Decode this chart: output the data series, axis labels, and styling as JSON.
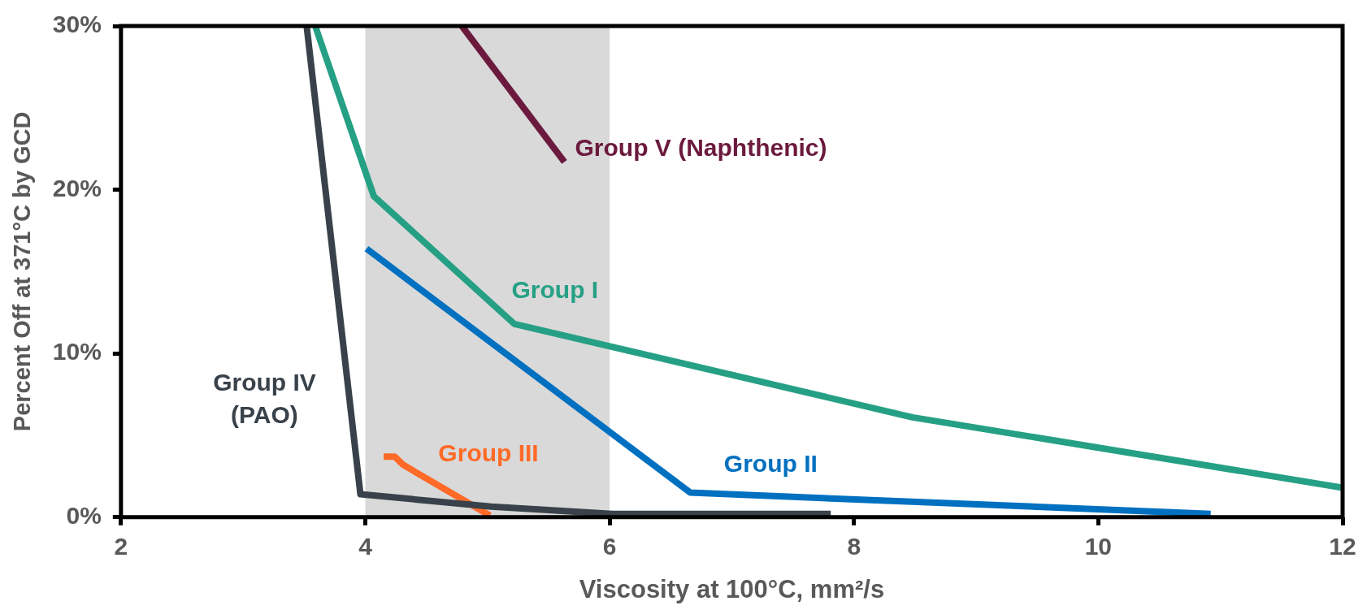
{
  "chart_data": {
    "type": "line",
    "xlabel": "Viscosity at 100°C, mm²/s",
    "ylabel": "Percent Off at 371°C by GCD",
    "xlim": [
      2,
      12
    ],
    "xticks": [
      2,
      4,
      6,
      8,
      10,
      12
    ],
    "ylim": [
      0,
      30
    ],
    "yticks": [
      {
        "value": 0,
        "label": "0%"
      },
      {
        "value": 10,
        "label": "10%"
      },
      {
        "value": 20,
        "label": "20%"
      },
      {
        "value": 30,
        "label": "30%"
      }
    ],
    "grid": false,
    "legend": false,
    "marker": "none",
    "line_style": "solid",
    "bands": [
      {
        "axis": "x",
        "from": 4,
        "to": 6,
        "color": "#d9d9d9"
      }
    ],
    "series": [
      {
        "name": "Group IV (PAO)",
        "color": "#39424a",
        "x": [
          3.52,
          3.96,
          5.03,
          6.02,
          7.81
        ],
        "values": [
          30,
          1.4,
          0.65,
          0.2,
          0.2
        ]
      },
      {
        "name": "Group I",
        "color": "#26a085",
        "x": [
          3.59,
          4.07,
          5.22,
          8.48,
          12
        ],
        "values": [
          30,
          19.6,
          11.8,
          6.1,
          1.8
        ]
      },
      {
        "name": "Group II",
        "color": "#0070c0",
        "x": [
          4.01,
          6.66,
          10.92
        ],
        "values": [
          16.4,
          1.5,
          0.2
        ]
      },
      {
        "name": "Group III",
        "color": "#ff6a28",
        "x": [
          4.15,
          4.24,
          4.31,
          5.02
        ],
        "values": [
          3.7,
          3.7,
          3.2,
          0.1
        ]
      },
      {
        "name": "Group V (Naphthenic)",
        "color": "#6b1a3d",
        "x": [
          4.79,
          5.63
        ],
        "values": [
          30,
          21.7
        ]
      }
    ]
  }
}
